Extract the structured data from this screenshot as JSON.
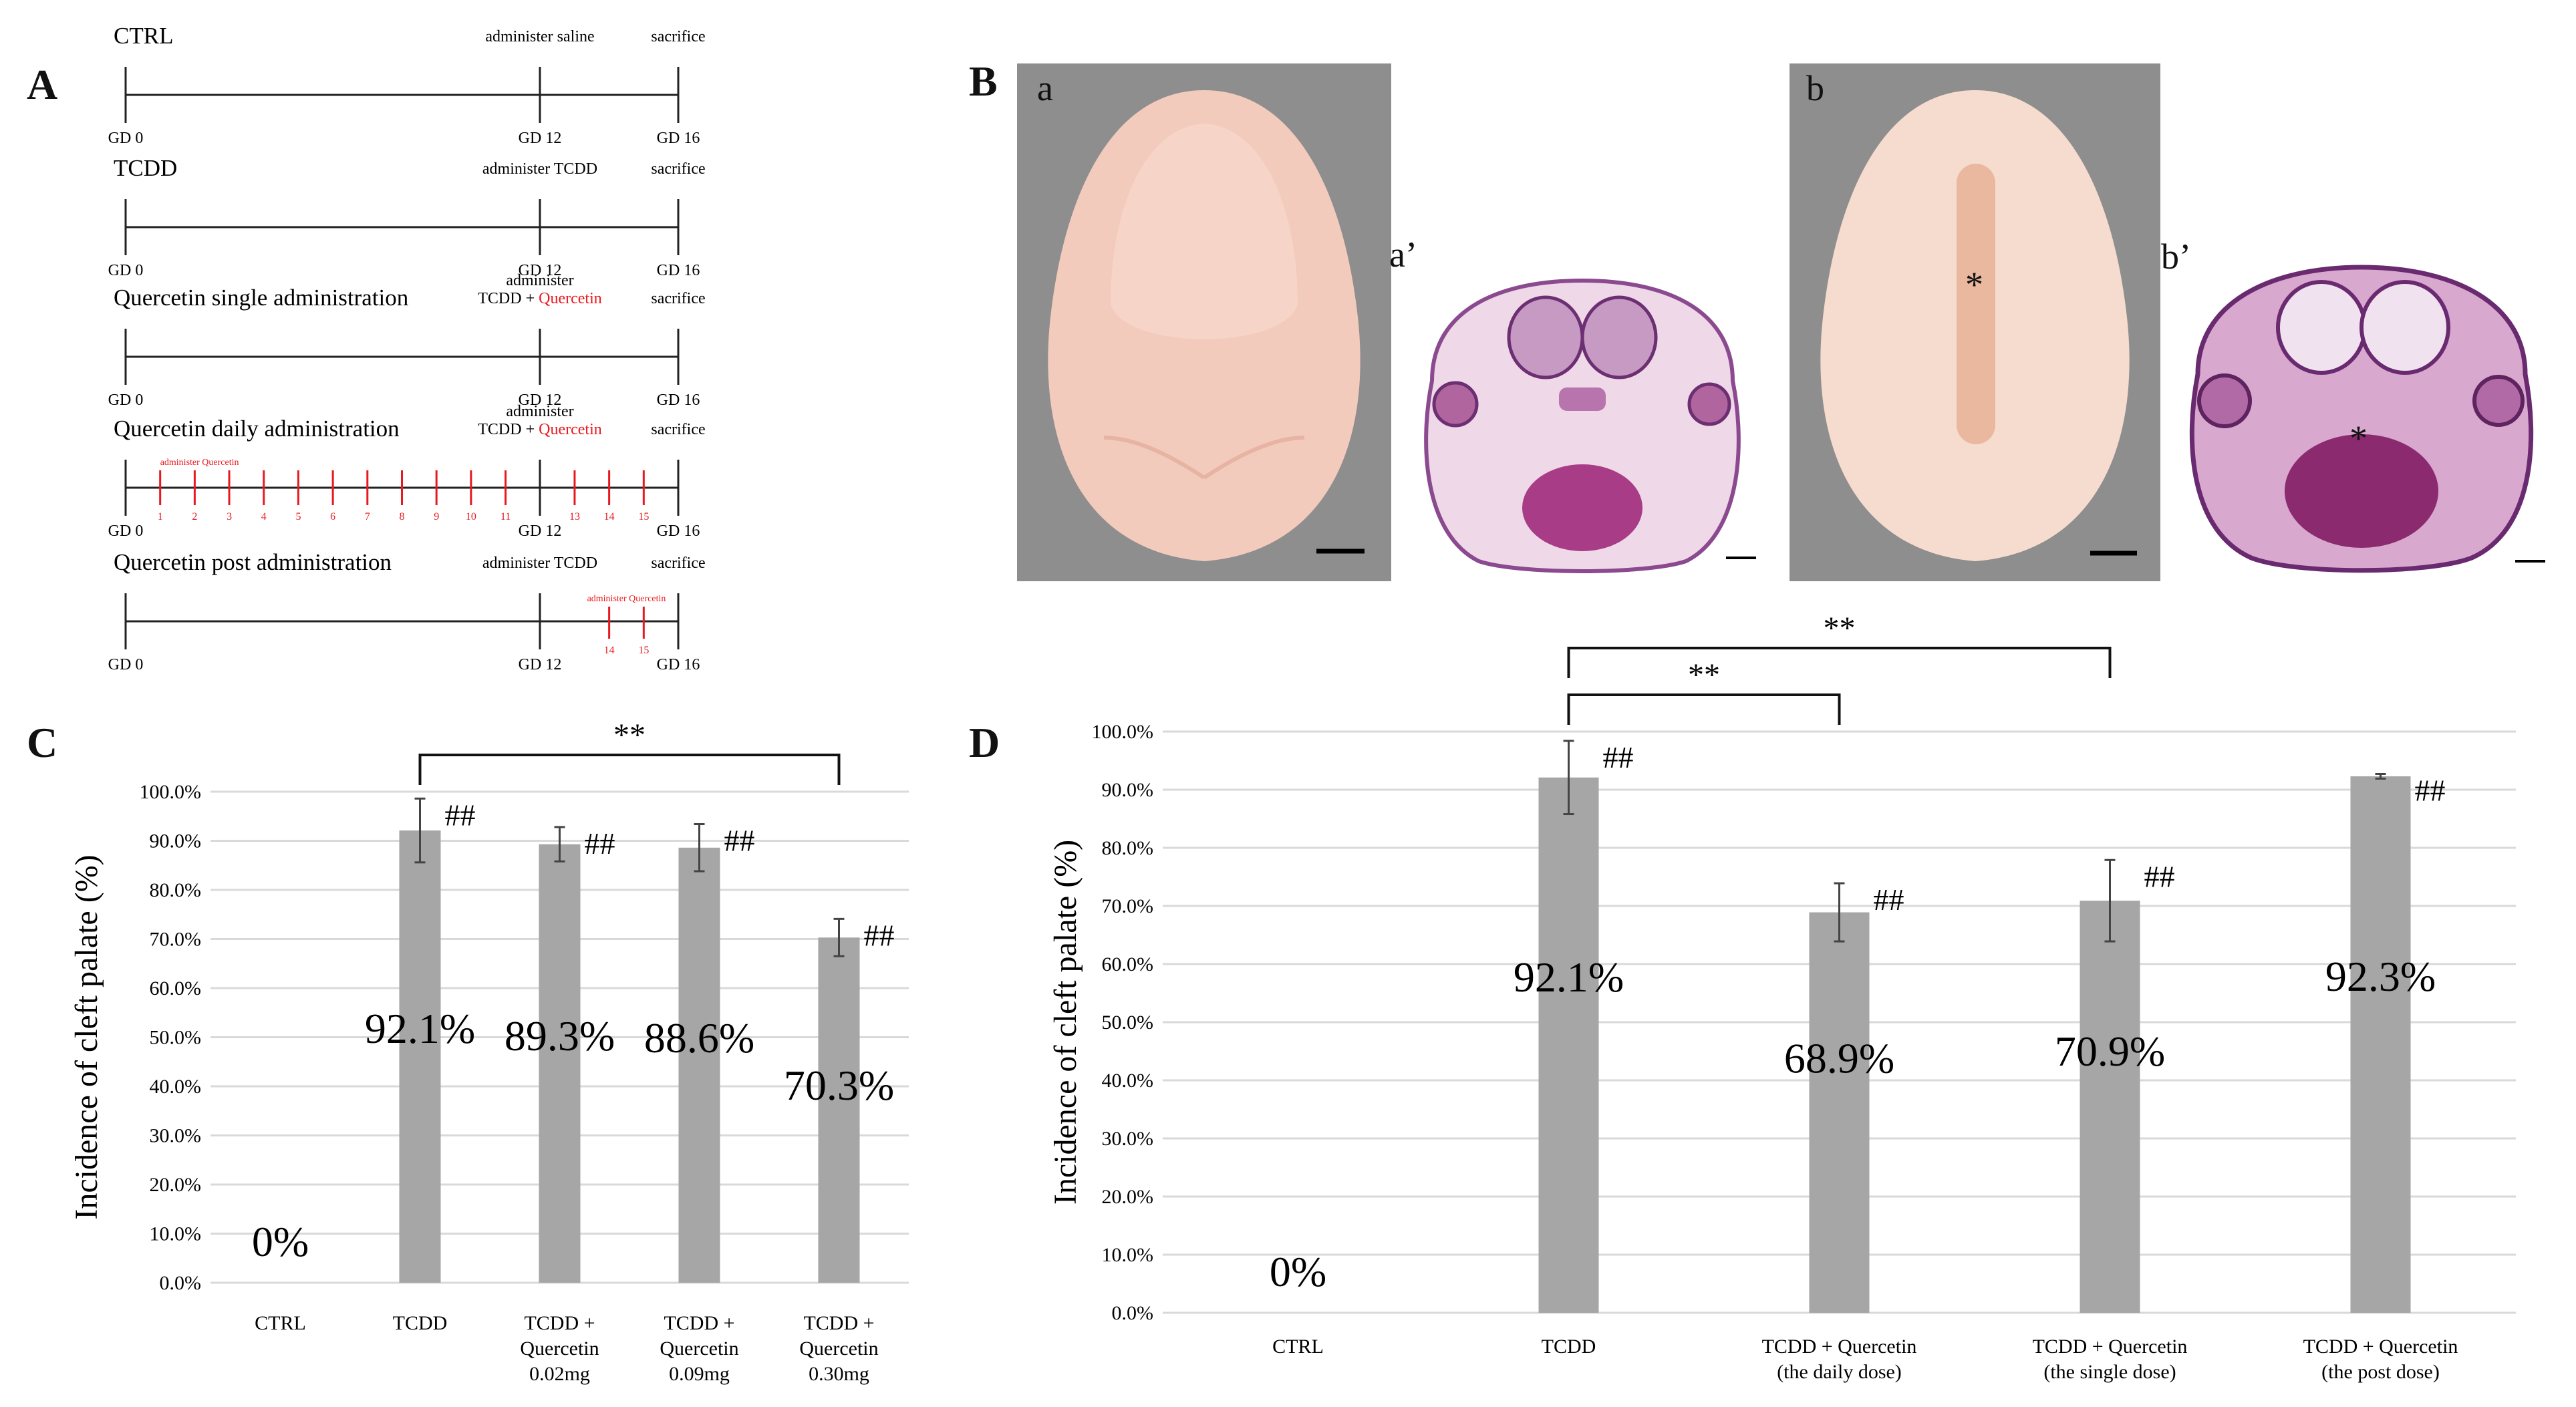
{
  "panels": {
    "A": "A",
    "B": "B",
    "C": "C",
    "D": "D"
  },
  "timeline": {
    "rows": [
      {
        "title": "CTRL",
        "event_label": "administer saline",
        "event_label_colored": "",
        "end_label": "sacrifice",
        "start_tick": "GD 0",
        "event_tick": "GD 12",
        "end_tick": "GD 16",
        "daily_caption": "",
        "daily_marks": [],
        "post_caption": "",
        "post_marks": []
      },
      {
        "title": "TCDD",
        "event_label": "administer TCDD",
        "event_label_colored": "",
        "end_label": "sacrifice",
        "start_tick": "GD 0",
        "event_tick": "GD 12",
        "end_tick": "GD 16",
        "daily_caption": "",
        "daily_marks": [],
        "post_caption": "",
        "post_marks": []
      },
      {
        "title": "Quercetin single administration",
        "event_label": "administer",
        "event_label_line2": "TCDD + ",
        "event_label_colored": "Quercetin",
        "end_label": "sacrifice",
        "start_tick": "GD 0",
        "event_tick": "GD 12",
        "end_tick": "GD 16",
        "daily_caption": "",
        "daily_marks": [],
        "post_caption": "",
        "post_marks": []
      },
      {
        "title": "Quercetin daily administration",
        "event_label": "administer",
        "event_label_line2": "TCDD + ",
        "event_label_colored": "Quercetin",
        "end_label": "sacrifice",
        "start_tick": "GD 0",
        "event_tick": "GD 12",
        "end_tick": "GD 16",
        "daily_caption": "administer Quercetin",
        "daily_marks": [
          "1",
          "2",
          "3",
          "4",
          "5",
          "6",
          "7",
          "8",
          "9",
          "10",
          "11",
          "13",
          "14",
          "15"
        ],
        "post_caption": "",
        "post_marks": []
      },
      {
        "title": "Quercetin post administration",
        "event_label": "administer TCDD",
        "event_label_colored": "",
        "end_label": "sacrifice",
        "start_tick": "GD 0",
        "event_tick": "GD 12",
        "end_tick": "GD 16",
        "daily_caption": "",
        "daily_marks": [],
        "post_caption": "administer Quercetin",
        "post_marks": [
          "14",
          "15"
        ]
      }
    ]
  },
  "photos": {
    "a": "a",
    "a_prime": "a’",
    "b": "b",
    "b_prime": "b’",
    "asterisk": "*"
  },
  "colors": {
    "bar": "#a6a6a6",
    "grid": "#d9d9d9",
    "quercetin_red": "#e8191e",
    "tissue_pink": "#f2c8ba",
    "photo_bg": "#8d8d8d",
    "he_purple": "#7b3a85"
  },
  "chart_data": [
    {
      "id": "C",
      "type": "bar",
      "ylabel": "Incidence of cleft palate (%)",
      "ylim": [
        0,
        100
      ],
      "yticks": [
        "0.0%",
        "10.0%",
        "20.0%",
        "30.0%",
        "40.0%",
        "50.0%",
        "60.0%",
        "70.0%",
        "80.0%",
        "90.0%",
        "100.0%"
      ],
      "categories": [
        [
          "CTRL"
        ],
        [
          "TCDD"
        ],
        [
          "TCDD +",
          "Quercetin",
          "0.02mg"
        ],
        [
          "TCDD +",
          "Quercetin",
          "0.09mg"
        ],
        [
          "TCDD +",
          "Quercetin",
          "0.30mg"
        ]
      ],
      "values": [
        0,
        92.1,
        89.3,
        88.6,
        70.3
      ],
      "errors": [
        0,
        6.5,
        3.5,
        4.8,
        3.8
      ],
      "value_labels": [
        "0%",
        "92.1%",
        "89.3%",
        "88.6%",
        "70.3%"
      ],
      "hash_labels": [
        "",
        "##",
        "##",
        "##",
        "##"
      ],
      "brackets": [
        {
          "from": 1,
          "to": 4,
          "label": "**"
        }
      ],
      "grid": true
    },
    {
      "id": "D",
      "type": "bar",
      "ylabel": "Incidence of cleft palate (%)",
      "ylim": [
        0,
        100
      ],
      "yticks": [
        "0.0%",
        "10.0%",
        "20.0%",
        "30.0%",
        "40.0%",
        "50.0%",
        "60.0%",
        "70.0%",
        "80.0%",
        "90.0%",
        "100.0%"
      ],
      "categories": [
        [
          "CTRL"
        ],
        [
          "TCDD"
        ],
        [
          "TCDD + Quercetin",
          "(the daily dose)"
        ],
        [
          "TCDD + Quercetin",
          "(the single dose)"
        ],
        [
          "TCDD + Quercetin",
          "(the post dose)"
        ]
      ],
      "values": [
        0,
        92.1,
        68.9,
        70.9,
        92.3
      ],
      "errors": [
        0,
        6.3,
        5.0,
        7.0,
        0.4
      ],
      "value_labels": [
        "0%",
        "92.1%",
        "68.9%",
        "70.9%",
        "92.3%"
      ],
      "hash_labels": [
        "",
        "##",
        "##",
        "##",
        "##"
      ],
      "brackets": [
        {
          "from": 1,
          "to": 2,
          "label": "**"
        },
        {
          "from": 1,
          "to": 3,
          "label": "**"
        }
      ],
      "grid": true
    }
  ]
}
